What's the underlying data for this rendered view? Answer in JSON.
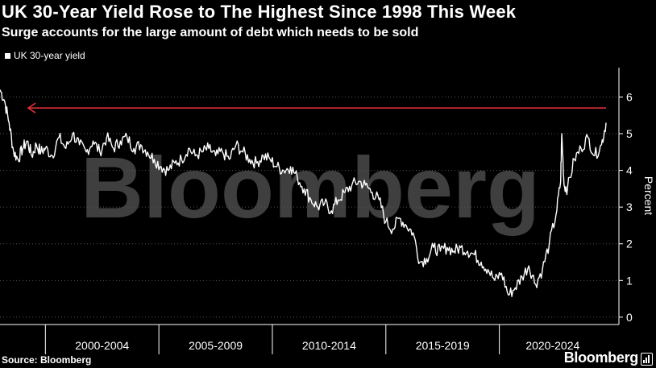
{
  "title": "UK 30-Year Yield Rose to The Highest Since 1998 This Week",
  "subtitle": "Surge accounts for the large amount of debt which needs to be sold",
  "source": "Source: Bloomberg",
  "brand": "Bloomberg",
  "watermark": "Bloomberg",
  "colors": {
    "background": "#000000",
    "series": "#ffffff",
    "arrow": "#e8323c",
    "grid": "#555555"
  },
  "chart_data": {
    "type": "line",
    "title": "UK 30-Year Yield Rose to The Highest Since 1998 This Week",
    "subtitle": "Surge accounts for the large amount of debt which needs to be sold",
    "ylabel": "Percent",
    "ylim": [
      -0.2,
      6.8
    ],
    "y_ticks": [
      0,
      1,
      2,
      3,
      4,
      5,
      6
    ],
    "xlim": [
      1998.0,
      2024.7
    ],
    "x_period_labels": [
      "2000-2004",
      "2005-2009",
      "2010-2014",
      "2015-2019",
      "2020-2024"
    ],
    "legend": "top-left",
    "grid": "horizontal dotted",
    "annotation": {
      "type": "horizontal arrow",
      "y": 5.7
    },
    "series": [
      {
        "name": "UK 30-year yield",
        "x": [
          1998.0,
          1998.2,
          1998.4,
          1998.6,
          1998.8,
          1999.0,
          1999.2,
          1999.4,
          1999.6,
          1999.8,
          2000.0,
          2000.3,
          2000.6,
          2000.9,
          2001.2,
          2001.5,
          2001.8,
          2002.1,
          2002.4,
          2002.7,
          2003.0,
          2003.3,
          2003.6,
          2003.9,
          2004.2,
          2004.5,
          2004.8,
          2005.1,
          2005.4,
          2005.7,
          2006.0,
          2006.3,
          2006.6,
          2006.9,
          2007.2,
          2007.5,
          2007.8,
          2008.1,
          2008.4,
          2008.7,
          2009.0,
          2009.3,
          2009.6,
          2009.9,
          2010.2,
          2010.5,
          2010.8,
          2011.1,
          2011.4,
          2011.7,
          2012.0,
          2012.3,
          2012.6,
          2012.9,
          2013.2,
          2013.5,
          2013.8,
          2014.1,
          2014.4,
          2014.7,
          2015.0,
          2015.3,
          2015.6,
          2015.9,
          2016.2,
          2016.5,
          2016.8,
          2017.1,
          2017.4,
          2017.7,
          2018.0,
          2018.3,
          2018.6,
          2018.9,
          2019.2,
          2019.5,
          2019.8,
          2020.1,
          2020.4,
          2020.7,
          2021.0,
          2021.3,
          2021.6,
          2021.9,
          2022.2,
          2022.5,
          2022.7,
          2022.75,
          2022.85,
          2023.0,
          2023.3,
          2023.6,
          2023.9,
          2024.2,
          2024.5,
          2024.7
        ],
        "values": [
          6.2,
          5.9,
          5.3,
          4.5,
          4.3,
          4.6,
          4.8,
          4.4,
          4.7,
          4.5,
          4.6,
          4.4,
          4.9,
          4.6,
          5.0,
          4.7,
          4.5,
          4.8,
          4.5,
          4.9,
          4.6,
          4.8,
          4.9,
          4.6,
          4.7,
          4.5,
          4.3,
          4.1,
          4.0,
          4.2,
          4.3,
          4.6,
          4.4,
          4.5,
          4.6,
          4.4,
          4.5,
          4.3,
          4.7,
          4.5,
          4.3,
          4.2,
          4.4,
          4.3,
          4.1,
          4.0,
          4.1,
          3.8,
          3.5,
          3.2,
          3.0,
          3.1,
          2.9,
          3.2,
          3.4,
          3.6,
          3.7,
          3.6,
          3.4,
          3.2,
          2.6,
          2.4,
          2.7,
          2.5,
          2.3,
          1.5,
          1.6,
          1.9,
          1.8,
          1.9,
          1.8,
          1.9,
          1.8,
          1.7,
          1.5,
          1.3,
          1.0,
          1.2,
          0.6,
          0.8,
          1.1,
          1.4,
          0.9,
          1.3,
          2.0,
          2.8,
          3.7,
          5.0,
          3.6,
          3.5,
          4.3,
          4.6,
          4.9,
          4.4,
          4.7,
          5.3
        ]
      }
    ]
  }
}
